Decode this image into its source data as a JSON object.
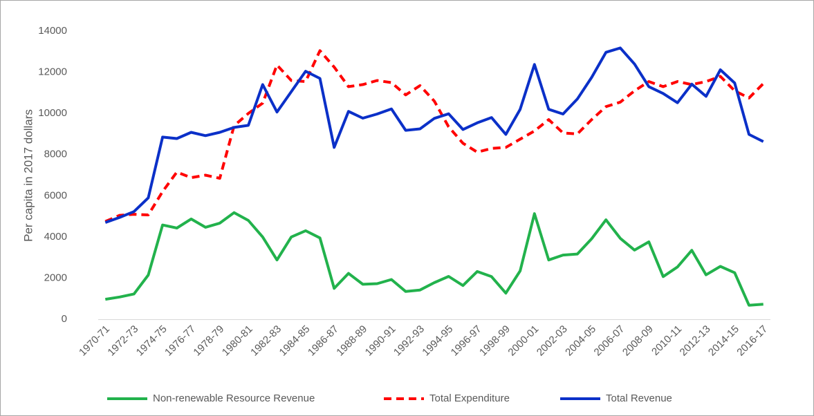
{
  "chart_data": {
    "type": "line",
    "y_label": "Per capita in 2017 dollars",
    "categories": [
      "1970-71",
      null,
      "1972-73",
      null,
      "1974-75",
      null,
      "1976-77",
      null,
      "1978-79",
      null,
      "1980-81",
      null,
      "1982-83",
      null,
      "1984-85",
      null,
      "1986-87",
      null,
      "1988-89",
      null,
      "1990-91",
      null,
      "1992-93",
      null,
      "1994-95",
      null,
      "1996-97",
      null,
      "1998-99",
      null,
      "2000-01",
      null,
      "2002-03",
      null,
      "2004-05",
      null,
      "2006-07",
      null,
      "2008-09",
      null,
      "2010-11",
      null,
      "2012-13",
      null,
      "2014-15",
      null,
      "2016-17"
    ],
    "series": [
      {
        "name": "Non-renewable Resource Revenue",
        "color": "#22b24c",
        "dashed": false,
        "values": [
          970,
          1080,
          1230,
          2150,
          4580,
          4430,
          4870,
          4470,
          4670,
          5180,
          4800,
          4000,
          2880,
          4000,
          4300,
          3950,
          1500,
          2230,
          1700,
          1730,
          1930,
          1350,
          1420,
          1780,
          2080,
          1640,
          2320,
          2070,
          1270,
          2350,
          5130,
          2880,
          3120,
          3170,
          3910,
          4830,
          3930,
          3360,
          3760,
          2070,
          2540,
          3350,
          2160,
          2570,
          2260,
          680,
          730
        ]
      },
      {
        "name": "Total Expenditure",
        "color": "#ff0000",
        "dashed": true,
        "values": [
          4750,
          5050,
          5100,
          5070,
          6200,
          7150,
          6880,
          7000,
          6850,
          9400,
          10000,
          10500,
          12350,
          11600,
          11550,
          13050,
          12250,
          11300,
          11400,
          11600,
          11500,
          10900,
          11350,
          10600,
          9350,
          8550,
          8120,
          8300,
          8350,
          8750,
          9150,
          9700,
          9050,
          9000,
          9700,
          10330,
          10550,
          11100,
          11550,
          11300,
          11550,
          11400,
          11550,
          11800,
          11100,
          10750,
          11450
        ]
      },
      {
        "name": "Total Revenue",
        "color": "#0b30c8",
        "dashed": false,
        "values": [
          4700,
          4950,
          5230,
          5900,
          8850,
          8780,
          9080,
          8920,
          9080,
          9320,
          9420,
          11400,
          10070,
          11060,
          12050,
          11700,
          8350,
          10100,
          9770,
          9970,
          10220,
          9180,
          9250,
          9760,
          9980,
          9220,
          9540,
          9800,
          8980,
          10200,
          12380,
          10200,
          9970,
          10700,
          11750,
          12970,
          13180,
          12400,
          11300,
          10970,
          10520,
          11420,
          10830,
          12120,
          11480,
          8980,
          8630
        ]
      }
    ],
    "ylim": [
      0,
      14000
    ],
    "yticks": [
      0,
      2000,
      4000,
      6000,
      8000,
      10000,
      12000,
      14000
    ],
    "grid": false,
    "legend": "bottom"
  }
}
